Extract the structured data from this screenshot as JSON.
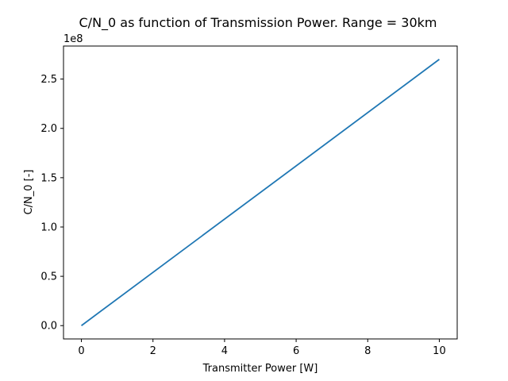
{
  "chart_data": {
    "type": "line",
    "title": "C/N_0 as function of Transmission Power. Range = 30km",
    "xlabel": "Transmitter Power [W]",
    "ylabel": "C/N_0 [-]",
    "y_offset_label": "1e8",
    "xlim": [
      -0.5,
      10.5
    ],
    "ylim": [
      -0.135,
      2.835
    ],
    "x_ticks": [
      0,
      2,
      4,
      6,
      8,
      10
    ],
    "x_tick_labels": [
      "0",
      "2",
      "4",
      "6",
      "8",
      "10"
    ],
    "y_ticks": [
      0.0,
      0.5,
      1.0,
      1.5,
      2.0,
      2.5
    ],
    "y_tick_labels": [
      "0.0",
      "0.5",
      "1.0",
      "1.5",
      "2.0",
      "2.5"
    ],
    "grid": false,
    "legend": "none",
    "series": [
      {
        "color": "#1f77b4",
        "x": [
          0,
          10
        ],
        "y": [
          0.0,
          2.7
        ]
      }
    ]
  }
}
